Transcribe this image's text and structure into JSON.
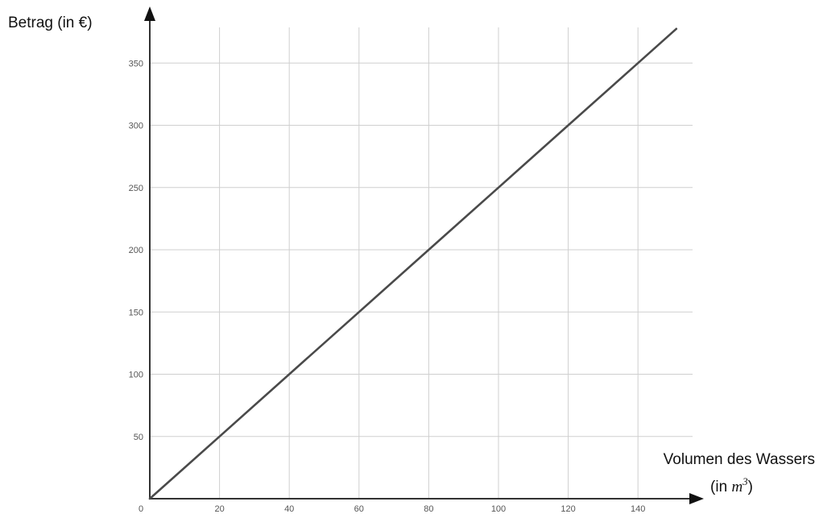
{
  "chart_data": {
    "type": "line",
    "ylabel": "Betrag (in €)",
    "xlabel_line1": "Volumen des Wassers",
    "xlabel_line2_prefix": "(in ",
    "xlabel_line2_var": "m",
    "xlabel_line2_exp": "3",
    "xlabel_line2_suffix": ")",
    "xlim": [
      0,
      155
    ],
    "ylim": [
      0,
      378
    ],
    "x_ticks": [
      0,
      20,
      40,
      60,
      80,
      100,
      120,
      140
    ],
    "y_ticks": [
      50,
      100,
      150,
      200,
      250,
      300,
      350
    ],
    "grid": true,
    "series": [
      {
        "x": [
          0,
          20,
          40,
          60,
          80,
          100,
          120,
          140,
          151
        ],
        "y": [
          0,
          50,
          100,
          150,
          200,
          250,
          300,
          350,
          377.5
        ]
      }
    ]
  }
}
